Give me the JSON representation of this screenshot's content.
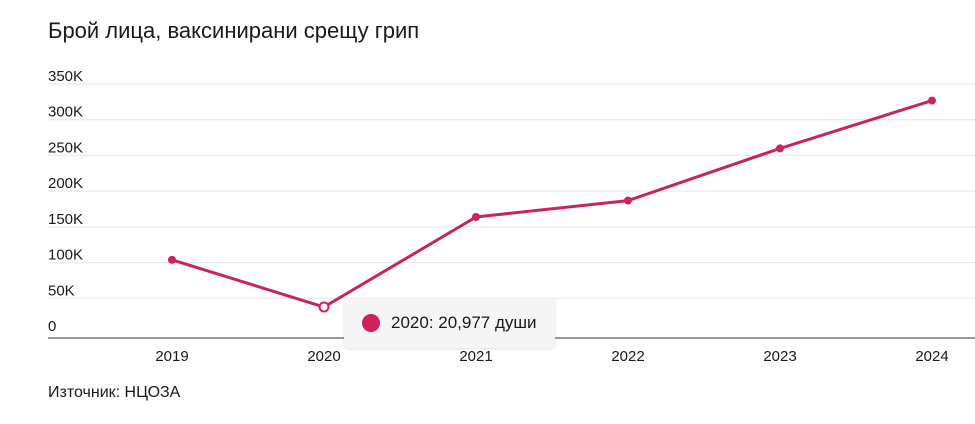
{
  "chart_data": {
    "type": "line",
    "title": "Брой лица, ваксинирани срещу грип",
    "x": [
      "2019",
      "2020",
      "2021",
      "2022",
      "2023",
      "2024"
    ],
    "series": [
      {
        "values": [
          87000,
          20977,
          147000,
          170000,
          243000,
          310000
        ]
      }
    ],
    "yticks": [
      "0",
      "50K",
      "100K",
      "150K",
      "200K",
      "250K",
      "300K",
      "350K"
    ],
    "ylim": [
      0,
      350000
    ],
    "grid": true,
    "tooltip": {
      "text": "2020: 20,977 души",
      "index": 1
    },
    "source": "Източник: НЦОЗА",
    "colors": {
      "series": "#c7255a",
      "marker": "#d0215b",
      "grid": "#e6e6e6"
    }
  }
}
